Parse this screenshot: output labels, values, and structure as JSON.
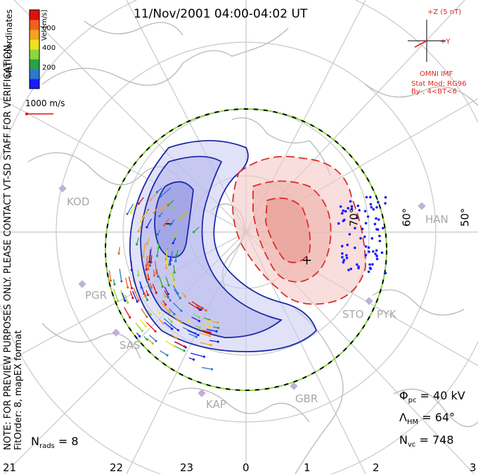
{
  "title": "11/Nov/2001 04:00-04:02 UT",
  "side_note_line1": "NOTE: FOR PREVIEW PURPOSES ONLY. PLEASE CONTACT VT-SD STAFF FOR VERIFICATION.",
  "side_note_line2": "FitOrder: 8, mapEX format",
  "coord_label": "MLT coordinates",
  "colorbar": {
    "label": "Vel [m/s]",
    "ticks": [
      "200",
      "400",
      "600"
    ],
    "colors": [
      "#1a1aff",
      "#2a7ad0",
      "#2aa14a",
      "#8ad83a",
      "#f0e020",
      "#f5a020",
      "#f06020",
      "#e01010"
    ]
  },
  "vector_key": "1000 m/s",
  "imf": {
    "scale": "+Z (5 nT)",
    "y_label": "+Y",
    "source": "OMNI IMF",
    "model": "Stat Mod: RG96",
    "condition": "By-, 4<BT<6"
  },
  "stats": {
    "phi_pc": "40 kV",
    "lambda_hm": "64°",
    "n_vc": "748",
    "n_rads": "8"
  },
  "mlt_labels": [
    "21",
    "22",
    "23",
    "0",
    "1",
    "2",
    "3"
  ],
  "lat_labels": [
    "50°",
    "60°",
    "70°"
  ],
  "stations": [
    "KOD",
    "PGR",
    "SAS",
    "KAP",
    "GBR",
    "STO",
    "PYK",
    "HAN"
  ],
  "colors": {
    "positive_fill": "#f3c8c4",
    "negative_fill": "#c8caf0",
    "positive_line": "#d8302a",
    "negative_line": "#1c2aa8",
    "grid": "#c8c8c8",
    "coast": "#b8b8b8"
  }
}
